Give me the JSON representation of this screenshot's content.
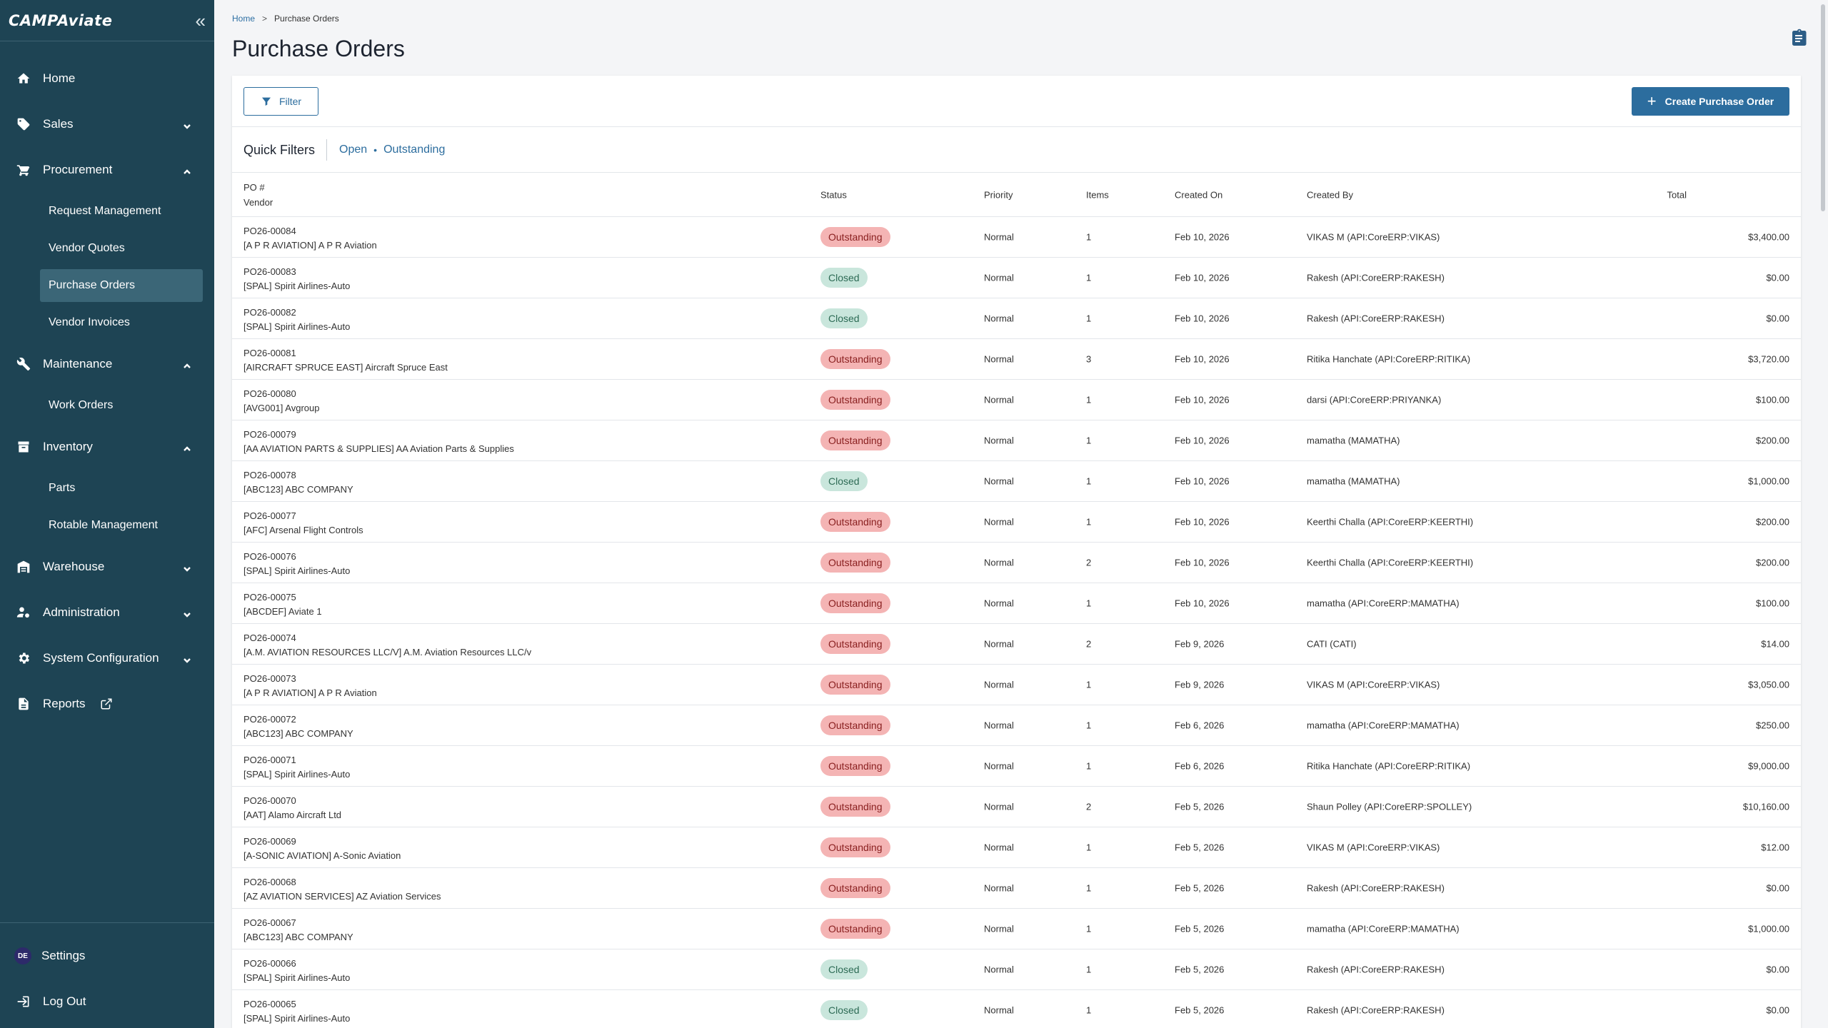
{
  "app": {
    "logo": "CAMPAviate"
  },
  "sidebar": {
    "items": [
      {
        "label": "Home",
        "icon": "home-icon"
      },
      {
        "label": "Sales",
        "icon": "tag-icon"
      },
      {
        "label": "Procurement",
        "icon": "cart-icon"
      },
      {
        "label": "Maintenance",
        "icon": "tools-icon"
      },
      {
        "label": "Inventory",
        "icon": "archive-icon"
      },
      {
        "label": "Warehouse",
        "icon": "warehouse-icon"
      },
      {
        "label": "Administration",
        "icon": "user-cog-icon"
      },
      {
        "label": "System Configuration",
        "icon": "gear-icon"
      },
      {
        "label": "Reports",
        "icon": "file-icon"
      }
    ],
    "procurement_sub": [
      "Request Management",
      "Vendor Quotes",
      "Purchase Orders",
      "Vendor Invoices"
    ],
    "maintenance_sub": [
      "Work Orders"
    ],
    "inventory_sub": [
      "Parts",
      "Rotable Management"
    ],
    "bottom": {
      "settings": "Settings",
      "avatar": "DE",
      "logout": "Log Out"
    }
  },
  "breadcrumb": {
    "home": "Home",
    "current": "Purchase Orders"
  },
  "page": {
    "title": "Purchase Orders"
  },
  "toolbar": {
    "filter_label": "Filter",
    "create_label": "Create Purchase Order"
  },
  "quick_filters": {
    "label": "Quick Filters",
    "open": "Open",
    "separator": "•",
    "outstanding": "Outstanding"
  },
  "table": {
    "headers": {
      "po": "PO #",
      "vendor": "Vendor",
      "status": "Status",
      "priority": "Priority",
      "items": "Items",
      "created_on": "Created On",
      "created_by": "Created By",
      "total": "Total"
    },
    "rows": [
      {
        "po": "PO26-00084",
        "vendor": "[A P R AVIATION] A P R Aviation",
        "status": "Outstanding",
        "priority": "Normal",
        "items": "1",
        "created_on": "Feb 10, 2026",
        "created_by": "VIKAS M (API:CoreERP:VIKAS)",
        "total": "$3,400.00"
      },
      {
        "po": "PO26-00083",
        "vendor": "[SPAL] Spirit Airlines-Auto",
        "status": "Closed",
        "priority": "Normal",
        "items": "1",
        "created_on": "Feb 10, 2026",
        "created_by": "Rakesh (API:CoreERP:RAKESH)",
        "total": "$0.00"
      },
      {
        "po": "PO26-00082",
        "vendor": "[SPAL] Spirit Airlines-Auto",
        "status": "Closed",
        "priority": "Normal",
        "items": "1",
        "created_on": "Feb 10, 2026",
        "created_by": "Rakesh (API:CoreERP:RAKESH)",
        "total": "$0.00"
      },
      {
        "po": "PO26-00081",
        "vendor": "[AIRCRAFT SPRUCE EAST] Aircraft Spruce East",
        "status": "Outstanding",
        "priority": "Normal",
        "items": "3",
        "created_on": "Feb 10, 2026",
        "created_by": "Ritika Hanchate (API:CoreERP:RITIKA)",
        "total": "$3,720.00"
      },
      {
        "po": "PO26-00080",
        "vendor": "[AVG001] Avgroup",
        "status": "Outstanding",
        "priority": "Normal",
        "items": "1",
        "created_on": "Feb 10, 2026",
        "created_by": "darsi (API:CoreERP:PRIYANKA)",
        "total": "$100.00"
      },
      {
        "po": "PO26-00079",
        "vendor": "[AA AVIATION PARTS & SUPPLIES] AA Aviation Parts & Supplies",
        "status": "Outstanding",
        "priority": "Normal",
        "items": "1",
        "created_on": "Feb 10, 2026",
        "created_by": "mamatha (MAMATHA)",
        "total": "$200.00"
      },
      {
        "po": "PO26-00078",
        "vendor": "[ABC123] ABC COMPANY",
        "status": "Closed",
        "priority": "Normal",
        "items": "1",
        "created_on": "Feb 10, 2026",
        "created_by": "mamatha (MAMATHA)",
        "total": "$1,000.00"
      },
      {
        "po": "PO26-00077",
        "vendor": "[AFC] Arsenal Flight Controls",
        "status": "Outstanding",
        "priority": "Normal",
        "items": "1",
        "created_on": "Feb 10, 2026",
        "created_by": "Keerthi Challa (API:CoreERP:KEERTHI)",
        "total": "$200.00"
      },
      {
        "po": "PO26-00076",
        "vendor": "[SPAL] Spirit Airlines-Auto",
        "status": "Outstanding",
        "priority": "Normal",
        "items": "2",
        "created_on": "Feb 10, 2026",
        "created_by": "Keerthi Challa (API:CoreERP:KEERTHI)",
        "total": "$200.00"
      },
      {
        "po": "PO26-00075",
        "vendor": "[ABCDEF] Aviate 1",
        "status": "Outstanding",
        "priority": "Normal",
        "items": "1",
        "created_on": "Feb 10, 2026",
        "created_by": "mamatha (API:CoreERP:MAMATHA)",
        "total": "$100.00"
      },
      {
        "po": "PO26-00074",
        "vendor": "[A.M. AVIATION RESOURCES LLC/V] A.M. Aviation Resources LLC/v",
        "status": "Outstanding",
        "priority": "Normal",
        "items": "2",
        "created_on": "Feb 9, 2026",
        "created_by": "CATI (CATI)",
        "total": "$14.00"
      },
      {
        "po": "PO26-00073",
        "vendor": "[A P R AVIATION] A P R Aviation",
        "status": "Outstanding",
        "priority": "Normal",
        "items": "1",
        "created_on": "Feb 9, 2026",
        "created_by": "VIKAS M (API:CoreERP:VIKAS)",
        "total": "$3,050.00"
      },
      {
        "po": "PO26-00072",
        "vendor": "[ABC123] ABC COMPANY",
        "status": "Outstanding",
        "priority": "Normal",
        "items": "1",
        "created_on": "Feb 6, 2026",
        "created_by": "mamatha (API:CoreERP:MAMATHA)",
        "total": "$250.00"
      },
      {
        "po": "PO26-00071",
        "vendor": "[SPAL] Spirit Airlines-Auto",
        "status": "Outstanding",
        "priority": "Normal",
        "items": "1",
        "created_on": "Feb 6, 2026",
        "created_by": "Ritika Hanchate (API:CoreERP:RITIKA)",
        "total": "$9,000.00"
      },
      {
        "po": "PO26-00070",
        "vendor": "[AAT] Alamo Aircraft Ltd",
        "status": "Outstanding",
        "priority": "Normal",
        "items": "2",
        "created_on": "Feb 5, 2026",
        "created_by": "Shaun Polley (API:CoreERP:SPOLLEY)",
        "total": "$10,160.00"
      },
      {
        "po": "PO26-00069",
        "vendor": "[A-SONIC AVIATION] A-Sonic Aviation",
        "status": "Outstanding",
        "priority": "Normal",
        "items": "1",
        "created_on": "Feb 5, 2026",
        "created_by": "VIKAS M (API:CoreERP:VIKAS)",
        "total": "$12.00"
      },
      {
        "po": "PO26-00068",
        "vendor": "[AZ AVIATION SERVICES] AZ Aviation Services",
        "status": "Outstanding",
        "priority": "Normal",
        "items": "1",
        "created_on": "Feb 5, 2026",
        "created_by": "Rakesh (API:CoreERP:RAKESH)",
        "total": "$0.00"
      },
      {
        "po": "PO26-00067",
        "vendor": "[ABC123] ABC COMPANY",
        "status": "Outstanding",
        "priority": "Normal",
        "items": "1",
        "created_on": "Feb 5, 2026",
        "created_by": "mamatha (API:CoreERP:MAMATHA)",
        "total": "$1,000.00"
      },
      {
        "po": "PO26-00066",
        "vendor": "[SPAL] Spirit Airlines-Auto",
        "status": "Closed",
        "priority": "Normal",
        "items": "1",
        "created_on": "Feb 5, 2026",
        "created_by": "Rakesh (API:CoreERP:RAKESH)",
        "total": "$0.00"
      },
      {
        "po": "PO26-00065",
        "vendor": "[SPAL] Spirit Airlines-Auto",
        "status": "Closed",
        "priority": "Normal",
        "items": "1",
        "created_on": "Feb 5, 2026",
        "created_by": "Rakesh (API:CoreERP:RAKESH)",
        "total": "$0.00"
      }
    ]
  },
  "colors": {
    "sidebar_bg": "#1e4454",
    "accent": "#2c6d9e",
    "outstanding_badge": "#f4b4b4",
    "closed_badge": "#c9e6dc"
  }
}
